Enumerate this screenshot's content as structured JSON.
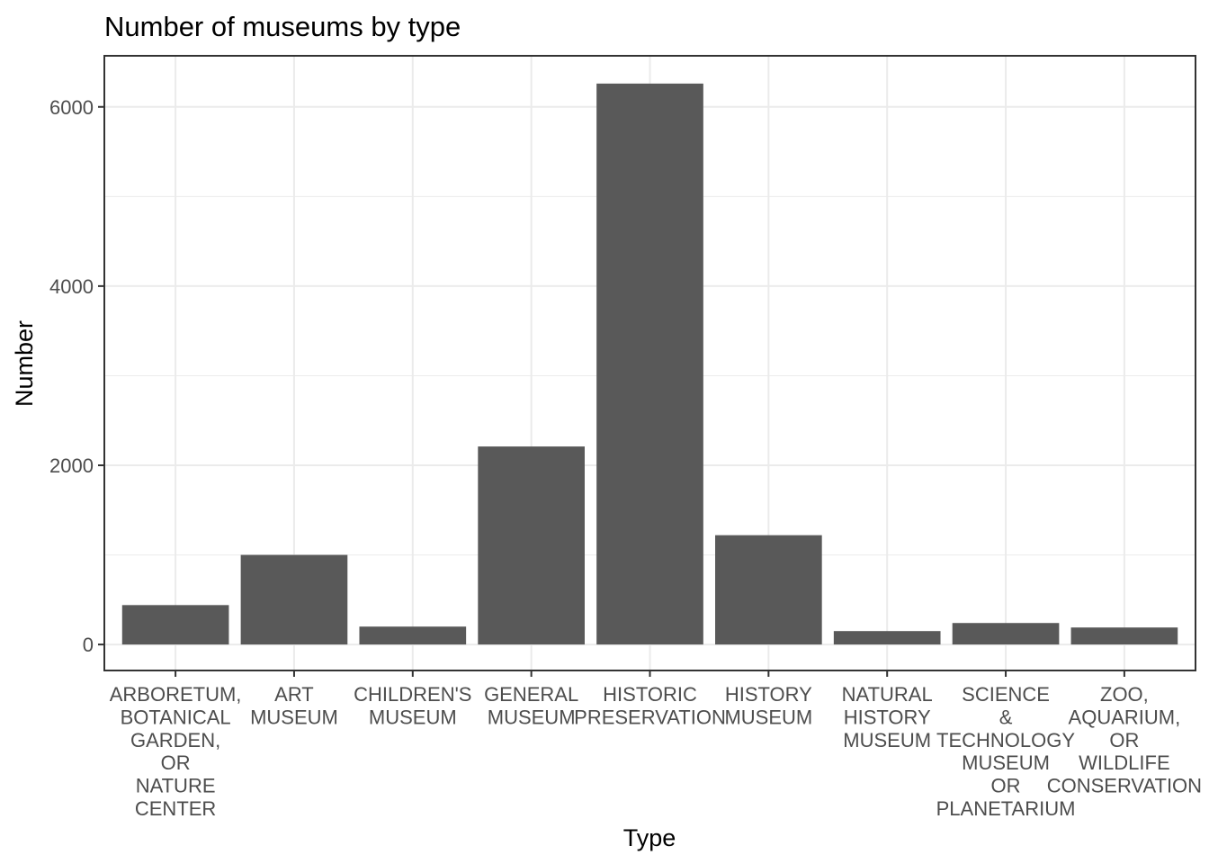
{
  "chart_data": {
    "type": "bar",
    "title": "Number of museums by type",
    "xlabel": "Type",
    "ylabel": "Number",
    "categories": [
      [
        "ARBORETUM,",
        "BOTANICAL",
        "GARDEN,",
        "OR",
        "NATURE",
        "CENTER"
      ],
      [
        "ART",
        "MUSEUM"
      ],
      [
        "CHILDREN'S",
        "MUSEUM"
      ],
      [
        "GENERAL",
        "MUSEUM"
      ],
      [
        "HISTORIC",
        "PRESERVATION"
      ],
      [
        "HISTORY",
        "MUSEUM"
      ],
      [
        "NATURAL",
        "HISTORY",
        "MUSEUM"
      ],
      [
        "SCIENCE",
        "&",
        "TECHNOLOGY",
        "MUSEUM",
        "OR",
        "PLANETARIUM"
      ],
      [
        "ZOO,",
        "AQUARIUM,",
        "OR",
        "WILDLIFE",
        "CONSERVATION"
      ]
    ],
    "values": [
      440,
      1000,
      200,
      2210,
      6260,
      1220,
      150,
      240,
      190
    ],
    "ylim": [
      -290,
      6570
    ],
    "yticks": [
      0,
      2000,
      4000,
      6000
    ],
    "grid": true,
    "colors": {
      "bar": "#595959",
      "grid": "#ebebeb",
      "panel_border": "#333333"
    }
  }
}
